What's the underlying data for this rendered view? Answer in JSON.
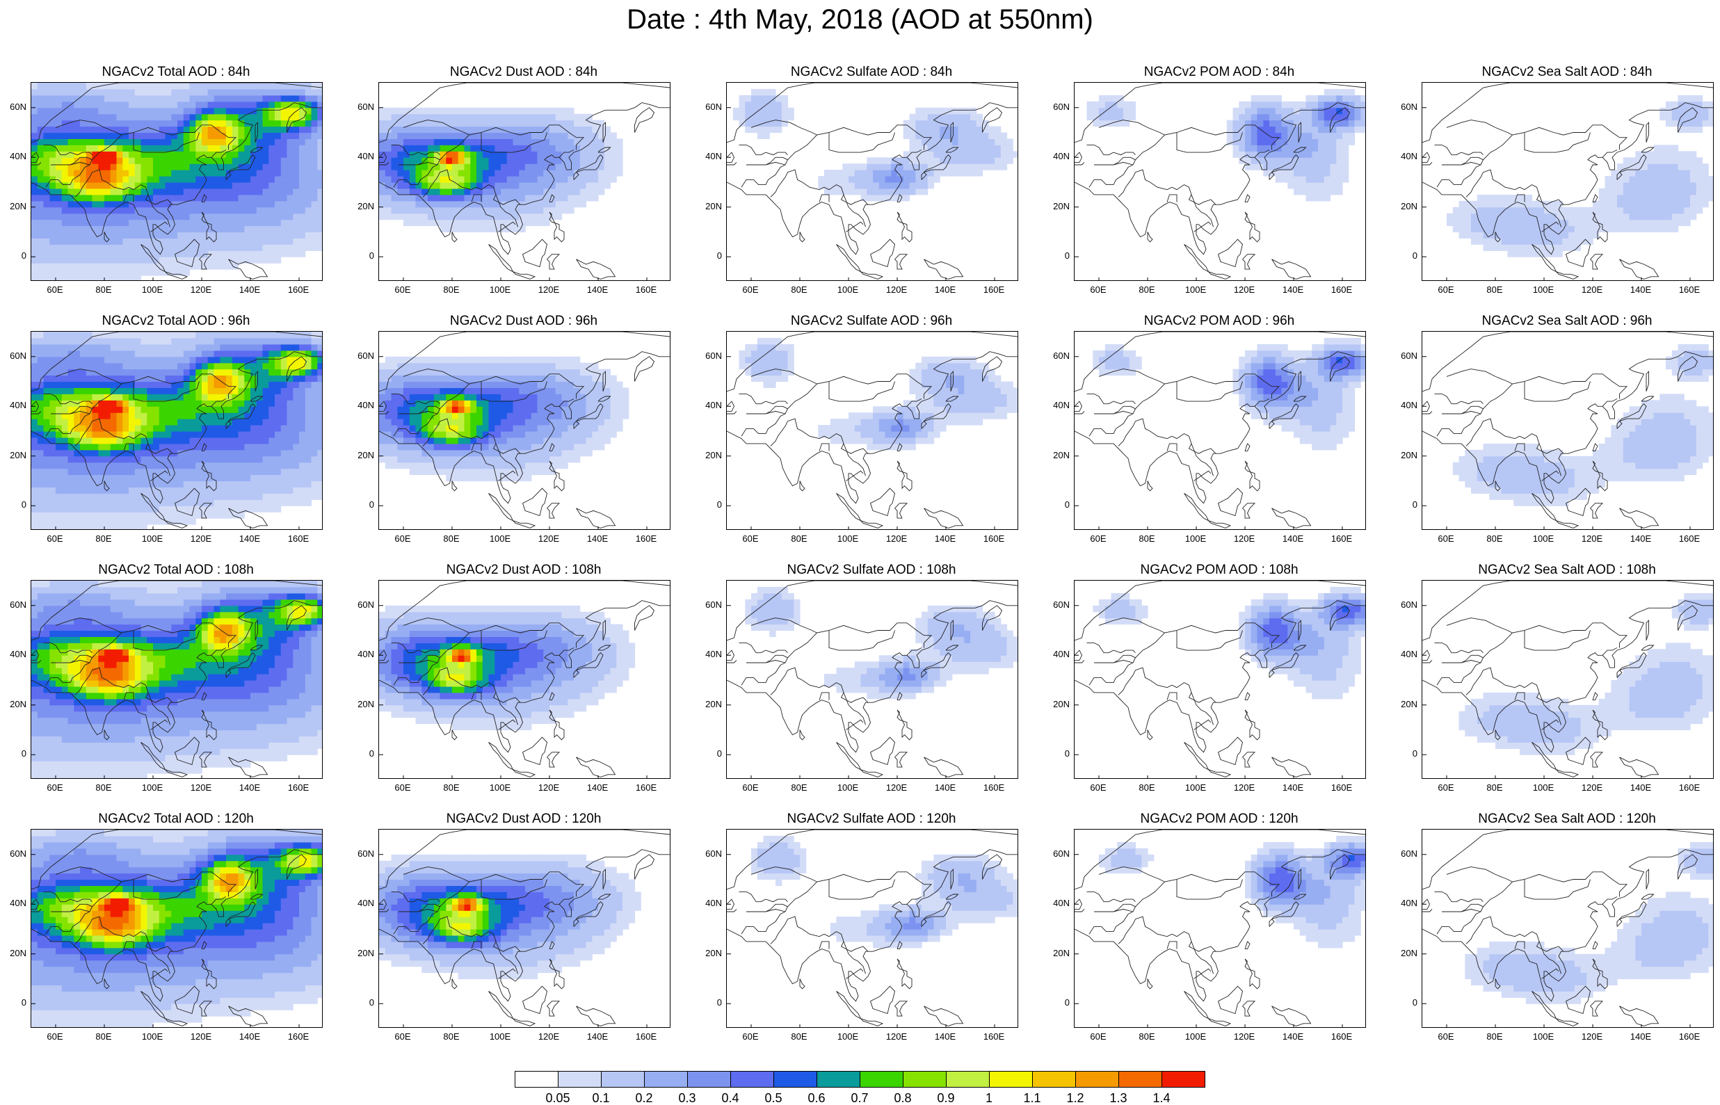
{
  "title": "Date : 4th May, 2018 (AOD at 550nm)",
  "lat_labels": [
    "60N",
    "40N",
    "20N",
    "0"
  ],
  "lon_labels": [
    "60E",
    "80E",
    "100E",
    "120E",
    "140E",
    "160E"
  ],
  "panels": [
    {
      "title": "NGACv2 Total AOD : 84h",
      "species": "total",
      "hour": 84
    },
    {
      "title": "NGACv2 Dust AOD : 84h",
      "species": "dust",
      "hour": 84
    },
    {
      "title": "NGACv2 Sulfate AOD : 84h",
      "species": "sulfate",
      "hour": 84
    },
    {
      "title": "NGACv2 POM AOD : 84h",
      "species": "pom",
      "hour": 84
    },
    {
      "title": "NGACv2 Sea Salt AOD : 84h",
      "species": "seasalt",
      "hour": 84
    },
    {
      "title": "NGACv2 Total AOD : 96h",
      "species": "total",
      "hour": 96
    },
    {
      "title": "NGACv2 Dust AOD : 96h",
      "species": "dust",
      "hour": 96
    },
    {
      "title": "NGACv2 Sulfate AOD : 96h",
      "species": "sulfate",
      "hour": 96
    },
    {
      "title": "NGACv2 POM AOD : 96h",
      "species": "pom",
      "hour": 96
    },
    {
      "title": "NGACv2 Sea Salt AOD : 96h",
      "species": "seasalt",
      "hour": 96
    },
    {
      "title": "NGACv2 Total AOD : 108h",
      "species": "total",
      "hour": 108
    },
    {
      "title": "NGACv2 Dust AOD : 108h",
      "species": "dust",
      "hour": 108
    },
    {
      "title": "NGACv2 Sulfate AOD : 108h",
      "species": "sulfate",
      "hour": 108
    },
    {
      "title": "NGACv2 POM AOD : 108h",
      "species": "pom",
      "hour": 108
    },
    {
      "title": "NGACv2 Sea Salt AOD : 108h",
      "species": "seasalt",
      "hour": 108
    },
    {
      "title": "NGACv2 Total AOD : 120h",
      "species": "total",
      "hour": 120
    },
    {
      "title": "NGACv2 Dust AOD : 120h",
      "species": "dust",
      "hour": 120
    },
    {
      "title": "NGACv2 Sulfate AOD : 120h",
      "species": "sulfate",
      "hour": 120
    },
    {
      "title": "NGACv2 POM AOD : 120h",
      "species": "pom",
      "hour": 120
    },
    {
      "title": "NGACv2 Sea Salt  AOD : 120h",
      "species": "seasalt",
      "hour": 120
    }
  ],
  "colorbar": {
    "labels": [
      "0.05",
      "0.1",
      "0.2",
      "0.3",
      "0.4",
      "0.5",
      "0.6",
      "0.7",
      "0.8",
      "0.9",
      "1",
      "1.1",
      "1.2",
      "1.3",
      "1.4"
    ],
    "colors": [
      "#ffffff",
      "#d3dcf7",
      "#b6c6f5",
      "#97aef3",
      "#7d93f0",
      "#5e6cf0",
      "#1f5ae6",
      "#0a9b9b",
      "#3ad400",
      "#86e300",
      "#c2f042",
      "#f3f500",
      "#f4c400",
      "#f59a00",
      "#f46a00",
      "#f21d00"
    ]
  }
}
